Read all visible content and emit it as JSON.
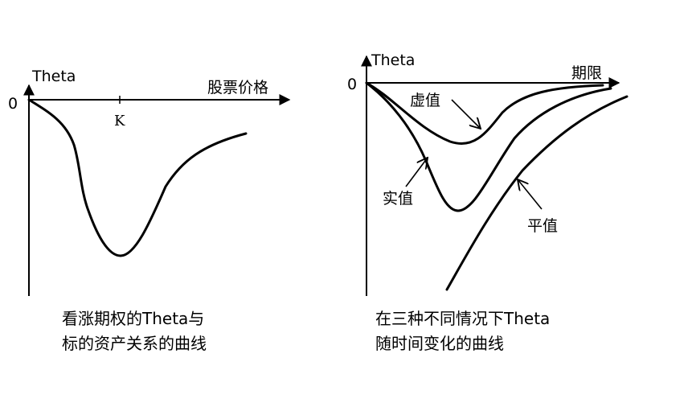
{
  "left_panel": {
    "y_axis_label": "Theta",
    "x_axis_label": "股票价格",
    "origin_label": "0",
    "strike_label": "K",
    "caption_line1": "看涨期权的Theta与",
    "caption_line2": "标的资产关系的曲线"
  },
  "right_panel": {
    "y_axis_label": "Theta",
    "x_axis_label": "期限",
    "origin_label": "0",
    "curve_labels": {
      "out_of_money": "虚值",
      "in_the_money": "实值",
      "at_the_money": "平值"
    },
    "caption_line1": "在三种不同情况下Theta",
    "caption_line2": "随时间变化的曲线"
  }
}
